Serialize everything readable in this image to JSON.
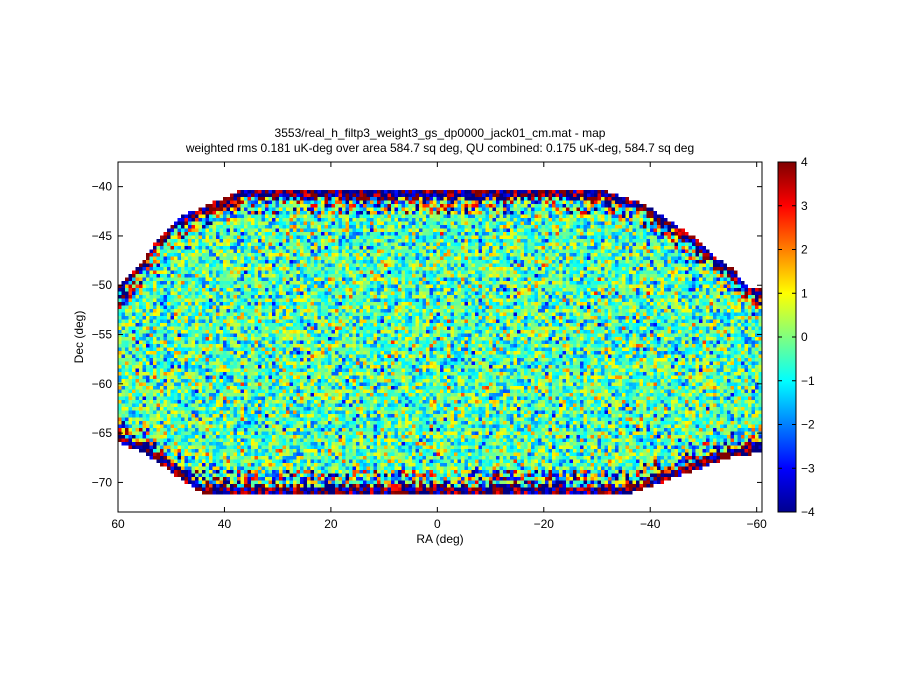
{
  "chart_data": {
    "type": "heatmap",
    "title": "3553/real_h_filtp3_weight3_gs_dp0000_jack01_cm.mat - map",
    "subtitle": "weighted rms 0.181 uK-deg over area 584.7 sq deg, QU combined: 0.175 uK-deg, 584.7 sq deg",
    "xlabel": "RA (deg)",
    "ylabel": "Dec (deg)",
    "xlim": [
      60,
      -61
    ],
    "ylim": [
      -73,
      -37.5
    ],
    "xticks": [
      60,
      40,
      20,
      0,
      -20,
      -40,
      -60
    ],
    "xtick_labels": [
      "60",
      "40",
      "20",
      "0",
      "−20",
      "−40",
      "−60"
    ],
    "yticks": [
      -40,
      -45,
      -50,
      -55,
      -60,
      -65,
      -70
    ],
    "ytick_labels": [
      "−40",
      "−45",
      "−50",
      "−55",
      "−60",
      "−65",
      "−70"
    ],
    "colorbar": {
      "range": [
        -4,
        4
      ],
      "ticks": [
        4,
        3,
        2,
        1,
        0,
        -1,
        -2,
        -3,
        -4
      ],
      "tick_labels": [
        "4",
        "3",
        "2",
        "1",
        "0",
        "−1",
        "−2",
        "−3",
        "−4"
      ],
      "colormap": "jet"
    },
    "map_note": "noise-like map, values mostly in -1..1, edges saturated at ±4",
    "footprint": {
      "top_edge": [
        [
          60,
          -50
        ],
        [
          56,
          -48
        ],
        [
          52,
          -45
        ],
        [
          48,
          -43
        ],
        [
          44,
          -42
        ],
        [
          36,
          -40.2
        ],
        [
          -30,
          -40.2
        ],
        [
          -38,
          -41.5
        ],
        [
          -44,
          -43.5
        ],
        [
          -48,
          -45
        ],
        [
          -52,
          -47
        ],
        [
          -56,
          -48.5
        ],
        [
          -58,
          -50
        ],
        [
          -61,
          -50.5
        ]
      ],
      "bottom_edge": [
        [
          60,
          -66
        ],
        [
          55,
          -67
        ],
        [
          50,
          -69
        ],
        [
          44,
          -71.2
        ],
        [
          36,
          -71.2
        ],
        [
          -36,
          -71.2
        ],
        [
          -40,
          -70.5
        ],
        [
          -46,
          -69.2
        ],
        [
          -50,
          -68.5
        ],
        [
          -55,
          -67.5
        ],
        [
          -61,
          -67
        ]
      ]
    },
    "grid": false,
    "legend": "none"
  }
}
